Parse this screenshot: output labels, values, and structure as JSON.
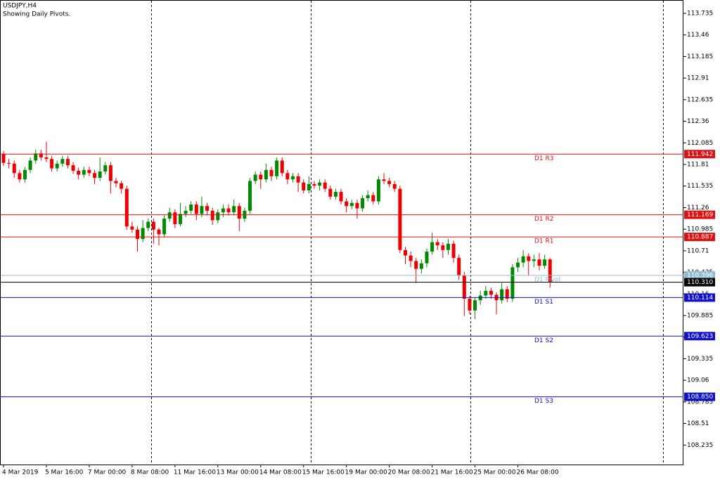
{
  "chart_data": {
    "type": "candlestick",
    "title": "USDJPY,H4",
    "subtitle": "Showing Daily Pivots.",
    "categories": [
      "4 Mar 2019",
      null,
      null,
      null,
      null,
      null,
      null,
      null,
      "5 Mar 16:00",
      null,
      null,
      null,
      null,
      null,
      null,
      null,
      "7 Mar 00:00",
      null,
      null,
      null,
      null,
      null,
      null,
      null,
      "8 Mar 08:00",
      null,
      null,
      null,
      null,
      null,
      null,
      null,
      "11 Mar 16:00",
      null,
      null,
      null,
      null,
      null,
      null,
      null,
      "13 Mar 00:00",
      null,
      null,
      null,
      null,
      null,
      null,
      null,
      "14 Mar 08:00",
      null,
      null,
      null,
      null,
      null,
      null,
      null,
      "15 Mar 16:00",
      null,
      null,
      null,
      null,
      null,
      null,
      null,
      "19 Mar 00:00",
      null,
      null,
      null,
      null,
      null,
      null,
      null,
      "20 Mar 08:00",
      null,
      null,
      null,
      null,
      null,
      null,
      null,
      "21 Mar 16:00",
      null,
      null,
      null,
      null,
      null,
      null,
      null,
      "25 Mar 00:00",
      null,
      null,
      null,
      null,
      null,
      null,
      null,
      "26 Mar 08:00",
      null,
      null,
      null,
      null,
      null,
      null
    ],
    "open": [
      111.94,
      111.83,
      111.82,
      111.7,
      111.62,
      111.74,
      111.86,
      111.95,
      111.9,
      111.88,
      111.76,
      111.82,
      111.88,
      111.8,
      111.73,
      111.68,
      111.74,
      111.7,
      111.64,
      111.72,
      111.8,
      111.6,
      111.57,
      111.5,
      111.02,
      110.98,
      110.86,
      111.0,
      111.08,
      110.98,
      110.92,
      111.12,
      111.2,
      111.05,
      111.18,
      111.22,
      111.3,
      111.18,
      111.28,
      111.22,
      111.1,
      111.2,
      111.25,
      111.2,
      111.28,
      111.12,
      111.22,
      111.6,
      111.68,
      111.62,
      111.74,
      111.66,
      111.86,
      111.7,
      111.62,
      111.66,
      111.58,
      111.48,
      111.56,
      111.54,
      111.58,
      111.5,
      111.4,
      111.46,
      111.34,
      111.28,
      111.32,
      111.25,
      111.38,
      111.42,
      111.34,
      111.62,
      111.6,
      111.56,
      111.5,
      110.72,
      110.65,
      110.58,
      110.48,
      110.55,
      110.7,
      110.82,
      110.78,
      110.72,
      110.8,
      110.62,
      110.4,
      110.1,
      109.95,
      110.08,
      110.14,
      110.2,
      110.15,
      110.08,
      110.22,
      110.1,
      110.5,
      110.56,
      110.64,
      110.58,
      110.6,
      110.52,
      110.6
    ],
    "high": [
      111.98,
      111.88,
      111.86,
      111.74,
      111.78,
      111.9,
      112.0,
      112.0,
      112.1,
      111.92,
      111.86,
      111.92,
      111.92,
      111.84,
      111.77,
      111.78,
      111.78,
      111.74,
      111.9,
      111.84,
      111.84,
      111.64,
      111.6,
      111.54,
      111.08,
      111.02,
      111.1,
      111.12,
      111.12,
      111.0,
      111.16,
      111.26,
      111.24,
      111.32,
      111.28,
      111.34,
      111.34,
      111.4,
      111.32,
      111.26,
      111.24,
      111.3,
      111.3,
      111.36,
      111.32,
      111.26,
      111.64,
      111.72,
      111.72,
      111.82,
      111.78,
      111.9,
      111.9,
      111.74,
      111.7,
      111.7,
      111.62,
      111.66,
      111.6,
      111.62,
      111.62,
      111.54,
      111.5,
      111.5,
      111.38,
      111.36,
      111.36,
      111.42,
      111.48,
      111.46,
      111.66,
      111.7,
      111.64,
      111.6,
      111.54,
      110.76,
      110.7,
      110.62,
      110.6,
      110.74,
      110.94,
      110.86,
      110.82,
      110.86,
      110.84,
      110.66,
      110.44,
      110.14,
      110.12,
      110.2,
      110.26,
      110.24,
      110.18,
      110.3,
      110.26,
      110.54,
      110.62,
      110.72,
      110.68,
      110.66,
      110.68,
      110.66,
      110.62
    ],
    "low": [
      111.79,
      111.76,
      111.64,
      111.58,
      111.58,
      111.7,
      111.82,
      111.86,
      111.84,
      111.72,
      111.72,
      111.78,
      111.76,
      111.69,
      111.62,
      111.64,
      111.66,
      111.56,
      111.6,
      111.68,
      111.44,
      111.52,
      111.44,
      110.98,
      110.94,
      110.7,
      110.82,
      110.96,
      110.8,
      110.78,
      110.88,
      111.08,
      111.0,
      111.02,
      111.14,
      111.18,
      111.1,
      111.14,
      111.16,
      111.04,
      111.06,
      111.14,
      111.16,
      111.16,
      110.96,
      111.08,
      111.18,
      111.56,
      111.5,
      111.58,
      111.6,
      111.62,
      111.66,
      111.56,
      111.58,
      111.46,
      111.44,
      111.44,
      111.5,
      111.48,
      111.46,
      111.36,
      111.36,
      111.3,
      111.2,
      111.24,
      111.12,
      111.21,
      111.34,
      111.3,
      111.3,
      111.56,
      111.52,
      111.46,
      110.68,
      110.54,
      110.5,
      110.3,
      110.42,
      110.5,
      110.66,
      110.72,
      110.62,
      110.66,
      110.56,
      110.34,
      109.88,
      109.9,
      109.84,
      110.02,
      110.1,
      110.1,
      109.9,
      110.04,
      110.06,
      110.06,
      110.44,
      110.5,
      110.4,
      110.5,
      110.46,
      110.48,
      110.24
    ],
    "close": [
      111.83,
      111.82,
      111.7,
      111.62,
      111.74,
      111.86,
      111.95,
      111.9,
      111.88,
      111.76,
      111.82,
      111.88,
      111.8,
      111.73,
      111.68,
      111.74,
      111.7,
      111.64,
      111.72,
      111.8,
      111.6,
      111.57,
      111.5,
      111.02,
      110.98,
      110.86,
      111.0,
      111.08,
      110.98,
      110.92,
      111.12,
      111.2,
      111.05,
      111.18,
      111.22,
      111.3,
      111.18,
      111.28,
      111.22,
      111.1,
      111.2,
      111.25,
      111.2,
      111.28,
      111.12,
      111.22,
      111.6,
      111.68,
      111.62,
      111.74,
      111.66,
      111.86,
      111.7,
      111.62,
      111.66,
      111.58,
      111.48,
      111.56,
      111.54,
      111.58,
      111.5,
      111.4,
      111.46,
      111.34,
      111.28,
      111.32,
      111.25,
      111.38,
      111.42,
      111.34,
      111.62,
      111.6,
      111.56,
      111.5,
      110.72,
      110.65,
      110.58,
      110.48,
      110.55,
      110.7,
      110.82,
      110.78,
      110.72,
      110.8,
      110.62,
      110.4,
      110.1,
      109.95,
      110.08,
      110.14,
      110.2,
      110.15,
      110.08,
      110.22,
      110.1,
      110.5,
      110.56,
      110.64,
      110.58,
      110.6,
      110.52,
      110.6,
      110.31
    ],
    "up_color": "#008a00",
    "down_color": "#ee0000",
    "levels": [
      {
        "name": "D1 R3",
        "value": 111.942,
        "color": "#e01010"
      },
      {
        "name": "D1 R2",
        "value": 111.169,
        "color": "#e01010"
      },
      {
        "name": "D1 R1",
        "value": 110.887,
        "color": "#e01010"
      },
      {
        "name": "D1 Pivot",
        "value": 110.396,
        "color": "#8fbcd4"
      },
      {
        "name": "D1 S1",
        "value": 110.114,
        "color": "#1010d0"
      },
      {
        "name": "D1 S2",
        "value": 109.623,
        "color": "#1010d0"
      },
      {
        "name": "D1 S3",
        "value": 108.85,
        "label": "108.850",
        "color": "#1010d0"
      }
    ],
    "current_price": {
      "value": 110.31,
      "label": "110.310",
      "color": "#000000"
    },
    "ylim": [
      107.987,
      113.905
    ],
    "yticks": [
      113.735,
      113.46,
      113.185,
      112.91,
      112.635,
      112.36,
      112.085,
      111.81,
      111.535,
      111.26,
      110.985,
      110.71,
      110.435,
      110.16,
      109.885,
      109.61,
      109.335,
      109.06,
      108.785,
      108.51,
      108.235
    ]
  }
}
